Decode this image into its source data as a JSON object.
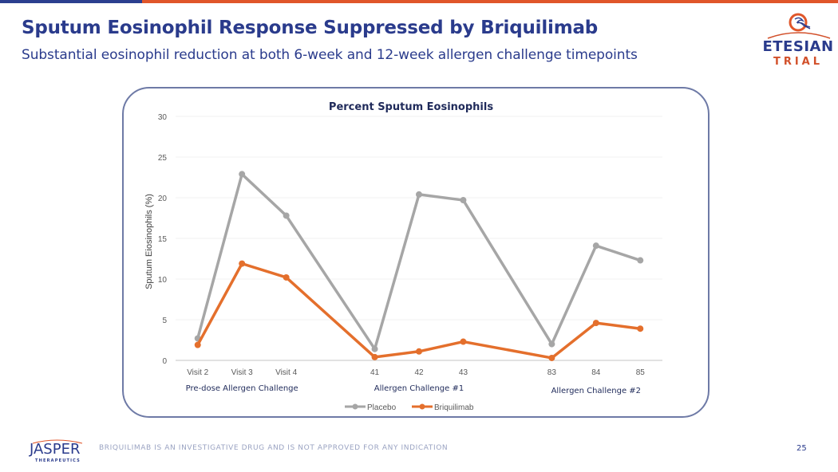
{
  "slide": {
    "title": "Sputum Eosinophil Response Suppressed by Briquilimab",
    "subtitle": "Substantial eosinophil reduction at both 6-week and 12-week allergen challenge timepoints",
    "logo_top": {
      "line1": "ETESIAN",
      "line2": "TRIAL"
    },
    "logo_bottom": {
      "line1": "JASPER",
      "line2": "THERAPEUTICS"
    },
    "disclaimer": "BRIQUILIMAB IS AN INVESTIGATIVE DRUG AND IS NOT APPROVED FOR ANY INDICATION",
    "page_number": "25",
    "colors": {
      "brand_blue": "#2a3b8c",
      "brand_orange": "#e0562a",
      "placebo": "#a6a6a6",
      "briquilimab": "#e46f2c"
    }
  },
  "chart_data": {
    "type": "line",
    "title": "Percent Sputum Eosinophils",
    "xlabel": "",
    "ylabel": "Sputum Eiosinophils (%)",
    "ylim": [
      0,
      30
    ],
    "yticks": [
      0,
      5,
      10,
      15,
      20,
      25,
      30
    ],
    "grid": true,
    "legend": "bottom",
    "categories": [
      "Visit 2",
      "Visit 3",
      "Visit 4",
      "",
      "41",
      "42",
      "43",
      "",
      "83",
      "84",
      "85"
    ],
    "groups": [
      {
        "label": "Pre-dose Allergen Challenge",
        "categories": [
          "Visit 2",
          "Visit 3",
          "Visit 4"
        ]
      },
      {
        "label": "Allergen Challenge #1",
        "categories": [
          "41",
          "42",
          "43"
        ]
      },
      {
        "label": "Allergen Challenge #2",
        "categories": [
          "83",
          "84",
          "85"
        ]
      }
    ],
    "series": [
      {
        "name": "Placebo",
        "color": "#a6a6a6",
        "segments": [
          [
            2.7,
            22.9,
            17.8
          ],
          [
            1.4,
            20.4,
            19.7
          ],
          [
            2.0,
            14.1,
            12.3
          ]
        ]
      },
      {
        "name": "Briquilimab",
        "color": "#e46f2c",
        "segments": [
          [
            1.9,
            11.9,
            10.2
          ],
          [
            0.4,
            1.1,
            2.3
          ],
          [
            0.3,
            4.6,
            3.9
          ]
        ]
      }
    ]
  }
}
